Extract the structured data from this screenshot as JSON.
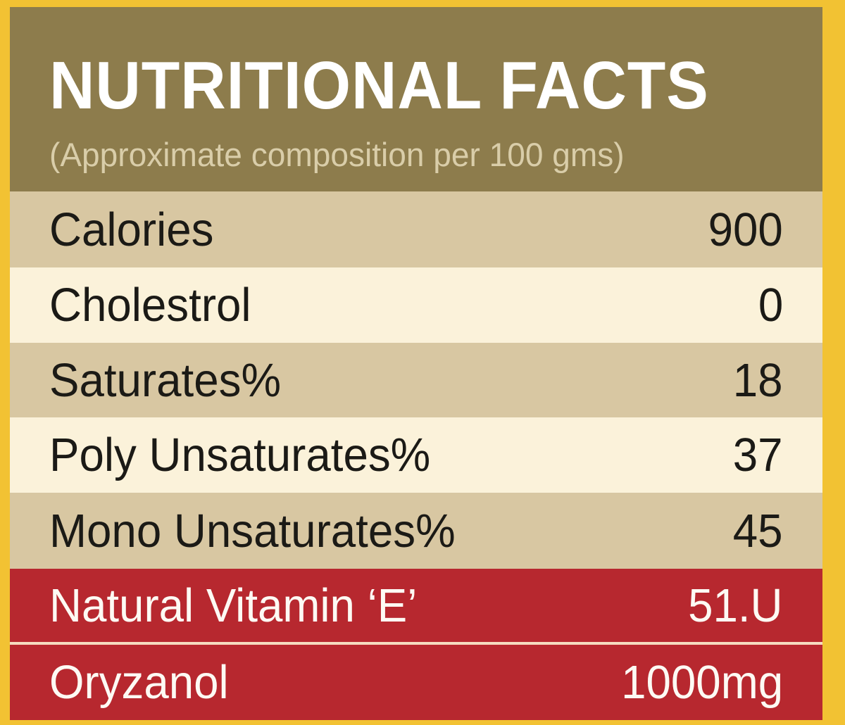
{
  "header": {
    "title": "NUTRITIONAL FACTS",
    "subtitle": "(Approximate composition per 100 gms)"
  },
  "rows": [
    {
      "label": "Calories",
      "value": "900"
    },
    {
      "label": "Cholestrol",
      "value": "0"
    },
    {
      "label": "Saturates%",
      "value": "18"
    },
    {
      "label": "Poly Unsaturates%",
      "value": "37"
    },
    {
      "label": "Mono Unsaturates%",
      "value": "45"
    },
    {
      "label": "Natural Vitamin ‘E’",
      "value": "51.U"
    },
    {
      "label": "Oryzanol",
      "value": "1000mg"
    }
  ],
  "colors": {
    "border": "#f2c233",
    "header_background": "#8d7c4c",
    "row_tan": "#d8c7a2",
    "row_cream": "#fbf2da",
    "row_red": "#b7282f"
  }
}
